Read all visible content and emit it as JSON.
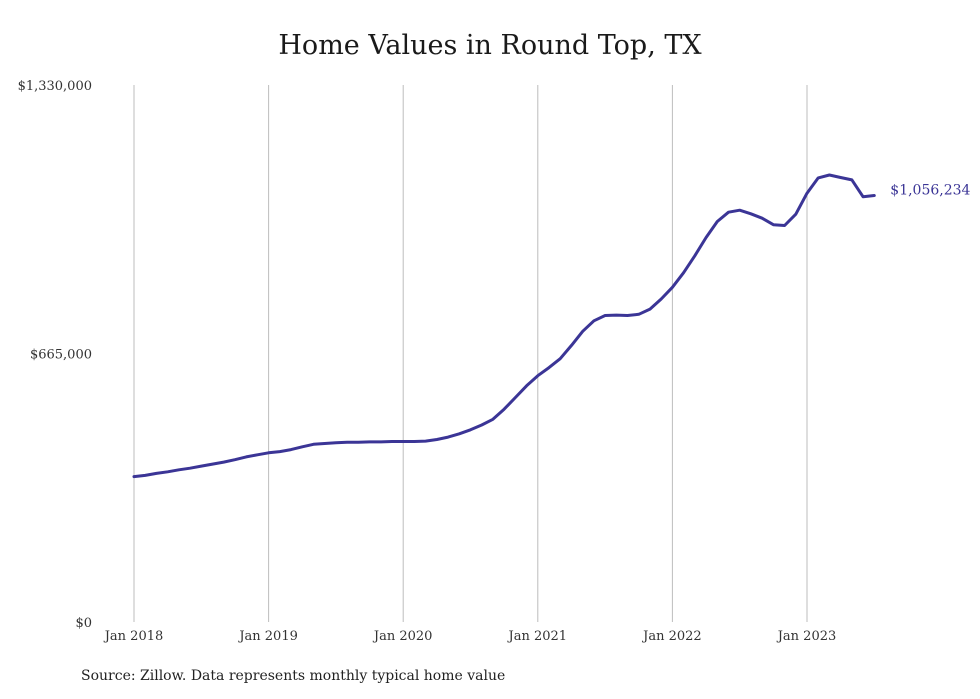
{
  "chart_data": {
    "type": "line",
    "title": "Home Values in Round Top, TX",
    "source": "Source: Zillow. Data represents monthly typical home value",
    "x_ticks": [
      "Jan 2018",
      "Jan 2019",
      "Jan 2020",
      "Jan 2021",
      "Jan 2022",
      "Jan 2023"
    ],
    "y_ticks": [
      "$0",
      "$665,000",
      "$1,330,000"
    ],
    "y_tick_values": [
      0,
      665000,
      1330000
    ],
    "ylim": [
      0,
      1330000
    ],
    "xlim": [
      "2018-01",
      "2023-07"
    ],
    "grid": "vertical",
    "line_color": "#3b3596",
    "end_label": "$1,056,234",
    "series": [
      {
        "x": [
          "2018-01",
          "2018-02",
          "2018-03",
          "2018-04",
          "2018-05",
          "2018-06",
          "2018-07",
          "2018-08",
          "2018-09",
          "2018-10",
          "2018-11",
          "2018-12",
          "2019-01",
          "2019-02",
          "2019-03",
          "2019-04",
          "2019-05",
          "2019-06",
          "2019-07",
          "2019-08",
          "2019-09",
          "2019-10",
          "2019-11",
          "2019-12",
          "2020-01",
          "2020-02",
          "2020-03",
          "2020-04",
          "2020-05",
          "2020-06",
          "2020-07",
          "2020-08",
          "2020-09",
          "2020-10",
          "2020-11",
          "2020-12",
          "2021-01",
          "2021-02",
          "2021-03",
          "2021-04",
          "2021-05",
          "2021-06",
          "2021-07",
          "2021-08",
          "2021-09",
          "2021-10",
          "2021-11",
          "2021-12",
          "2022-01",
          "2022-02",
          "2022-03",
          "2022-04",
          "2022-05",
          "2022-06",
          "2022-07",
          "2022-08",
          "2022-09",
          "2022-10",
          "2022-11",
          "2022-12",
          "2023-01",
          "2023-02",
          "2023-03",
          "2023-04",
          "2023-05",
          "2023-06",
          "2023-07"
        ],
        "y": [
          360000,
          363000,
          368000,
          372000,
          377000,
          381000,
          386000,
          391000,
          396000,
          402000,
          409000,
          414000,
          419000,
          422000,
          427000,
          434000,
          440000,
          442000,
          444000,
          445000,
          445000,
          446000,
          446000,
          447000,
          447000,
          447000,
          448000,
          452000,
          458000,
          466000,
          476000,
          488000,
          502000,
          527000,
          556000,
          585000,
          610000,
          630000,
          652000,
          685000,
          720000,
          746000,
          759000,
          760000,
          759000,
          762000,
          775000,
          800000,
          829000,
          865000,
          907000,
          952000,
          992000,
          1015000,
          1020000,
          1011000,
          1000000,
          984000,
          982000,
          1010000,
          1062000,
          1100000,
          1107000,
          1101000,
          1095000,
          1053000,
          1056234
        ]
      }
    ]
  }
}
